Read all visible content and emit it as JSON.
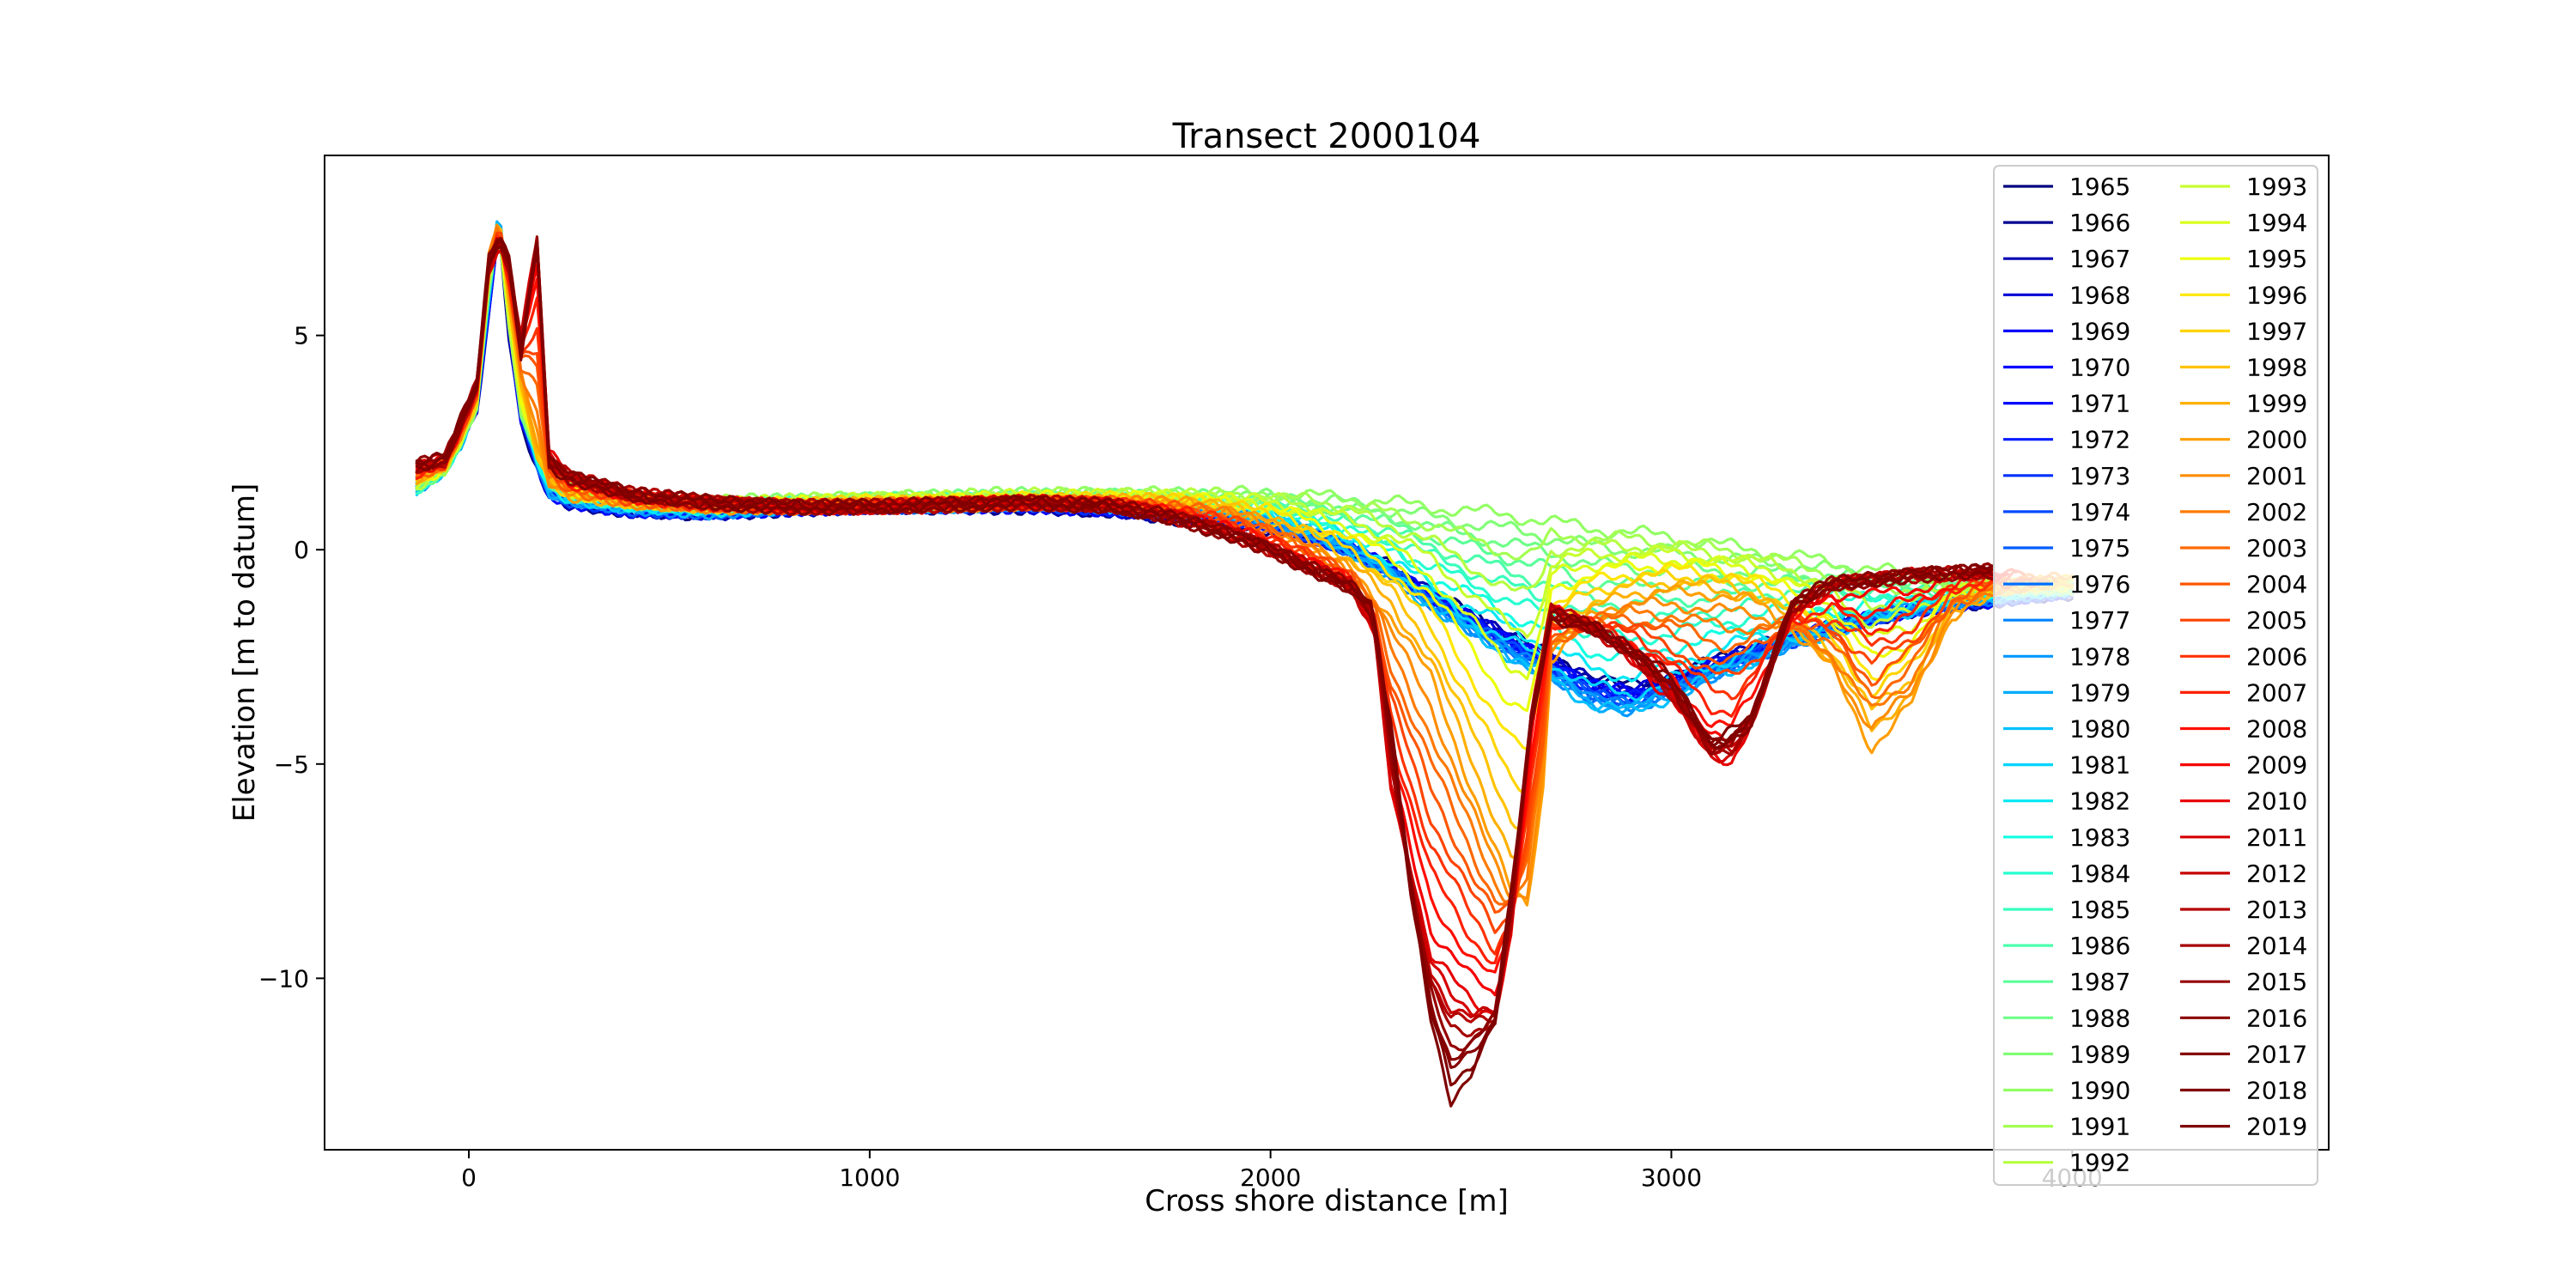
{
  "chart_data": {
    "type": "line",
    "title": "Transect 2000104",
    "xlabel": "Cross shore distance [m]",
    "ylabel": "Elevation [m to datum]",
    "xlim": [
      -360,
      4640
    ],
    "ylim": [
      -14,
      9.2
    ],
    "x_ticks": [
      0,
      1000,
      2000,
      3000,
      4000
    ],
    "x_tick_labels": [
      "0",
      "1000",
      "2000",
      "3000",
      "4000"
    ],
    "y_ticks": [
      -10,
      -5,
      0,
      5
    ],
    "y_tick_labels": [
      "−10",
      "−5",
      "0",
      "5"
    ],
    "grid": false,
    "legend_position": "right",
    "legend_columns": 2,
    "colormap": "jet",
    "series_names": [
      "1965",
      "1966",
      "1967",
      "1968",
      "1969",
      "1970",
      "1971",
      "1972",
      "1973",
      "1974",
      "1975",
      "1976",
      "1977",
      "1978",
      "1979",
      "1980",
      "1981",
      "1982",
      "1983",
      "1984",
      "1985",
      "1986",
      "1987",
      "1988",
      "1989",
      "1990",
      "1991",
      "1992",
      "1993",
      "1994",
      "1995",
      "1996",
      "1997",
      "1998",
      "1999",
      "2000",
      "2001",
      "2002",
      "2003",
      "2004",
      "2005",
      "2006",
      "2007",
      "2008",
      "2009",
      "2010",
      "2011",
      "2012",
      "2013",
      "2014",
      "2015",
      "2016",
      "2017",
      "2018",
      "2019"
    ],
    "series_colors": [
      "#00007f",
      "#00008f",
      "#0000b2",
      "#0000d6",
      "#0000fa",
      "#0000ff",
      "#0008ff",
      "#001cff",
      "#0030ff",
      "#0048ff",
      "#005cff",
      "#0070ff",
      "#0084ff",
      "#0098ff",
      "#00acff",
      "#00c0ff",
      "#00d4ff",
      "#02e8f4",
      "#14ffe2",
      "#26ffd0",
      "#38ffbe",
      "#4affac",
      "#5cff9a",
      "#6eff88",
      "#80ff76",
      "#92ff64",
      "#a4ff52",
      "#b6ff40",
      "#c8ff2e",
      "#daff1c",
      "#ecff0a",
      "#ffe600",
      "#ffd400",
      "#ffc200",
      "#ffb000",
      "#ff9e00",
      "#ff8c00",
      "#ff7a00",
      "#ff6800",
      "#ff5600",
      "#ff4400",
      "#ff3200",
      "#ff2000",
      "#ff0e00",
      "#f60000",
      "#e60000",
      "#d60000",
      "#c60000",
      "#b60000",
      "#a60000",
      "#960000",
      "#8b0000",
      "#860000",
      "#800000",
      "#7f0000"
    ],
    "representative_series": [
      {
        "name": "1965",
        "x": [
          -130,
          -60,
          -20,
          20,
          50,
          75,
          100,
          130,
          170,
          200,
          250,
          400,
          600,
          800,
          1000,
          1200,
          1400,
          1600,
          1700,
          1800,
          1900,
          2000,
          2100,
          2200,
          2300,
          2400,
          2500,
          2600,
          2700,
          2800,
          2900,
          3000,
          3100,
          3200,
          3300,
          3400,
          3500,
          3600,
          3700,
          3800,
          3900,
          4000
        ],
        "y": [
          1.6,
          2.0,
          2.6,
          3.3,
          5.5,
          7.6,
          5.0,
          3.0,
          2.0,
          1.3,
          1.1,
          0.9,
          0.85,
          0.95,
          1.0,
          1.0,
          1.0,
          0.9,
          0.8,
          0.7,
          0.6,
          0.5,
          0.3,
          0.0,
          -0.4,
          -1.0,
          -1.5,
          -2.0,
          -2.5,
          -3.0,
          -3.2,
          -3.0,
          -2.6,
          -2.3,
          -2.0,
          -1.8,
          -1.6,
          -1.4,
          -1.3,
          -1.2,
          -1.1,
          -1.0
        ]
      },
      {
        "name": "1980",
        "x": [
          -130,
          -60,
          -20,
          20,
          50,
          75,
          100,
          130,
          170,
          200,
          250,
          400,
          600,
          800,
          1000,
          1200,
          1400,
          1600,
          1700,
          1800,
          1900,
          2000,
          2100,
          2200,
          2300,
          2400,
          2500,
          2600,
          2700,
          2800,
          2900,
          3000,
          3100,
          3200,
          3300,
          3400,
          3500,
          3600,
          3700,
          3800,
          3900,
          4000
        ],
        "y": [
          1.4,
          1.9,
          2.5,
          3.5,
          6.0,
          7.9,
          5.6,
          3.4,
          2.1,
          1.4,
          1.2,
          1.0,
          0.9,
          1.0,
          1.05,
          1.05,
          1.1,
          1.05,
          1.0,
          0.95,
          0.85,
          0.7,
          0.4,
          0.0,
          -0.6,
          -1.3,
          -1.9,
          -2.5,
          -3.0,
          -3.6,
          -3.8,
          -3.4,
          -3.0,
          -2.6,
          -2.2,
          -1.9,
          -1.6,
          -1.4,
          -1.2,
          -1.1,
          -1.0,
          -0.9
        ]
      },
      {
        "name": "1990",
        "x": [
          -130,
          -60,
          -20,
          20,
          50,
          75,
          100,
          130,
          170,
          200,
          250,
          400,
          600,
          800,
          1000,
          1200,
          1400,
          1600,
          1800,
          2000,
          2200,
          2400,
          2600,
          2800,
          3000,
          3200,
          3400,
          3600,
          3800,
          4000
        ],
        "y": [
          1.5,
          1.9,
          2.6,
          3.4,
          6.2,
          7.5,
          5.2,
          3.2,
          2.4,
          1.8,
          1.4,
          1.2,
          1.1,
          1.15,
          1.2,
          1.25,
          1.3,
          1.3,
          1.3,
          1.3,
          1.2,
          1.0,
          0.8,
          0.5,
          0.3,
          0.0,
          -0.3,
          -0.6,
          -0.8,
          -0.9
        ]
      },
      {
        "name": "2000",
        "x": [
          -130,
          -60,
          -20,
          20,
          50,
          75,
          100,
          130,
          170,
          200,
          250,
          400,
          600,
          800,
          1000,
          1200,
          1400,
          1600,
          1700,
          1800,
          1900,
          2000,
          2100,
          2200,
          2300,
          2400,
          2500,
          2600,
          2640,
          2680,
          2700,
          2800,
          2900,
          3000,
          3100,
          3200,
          3300,
          3400,
          3500,
          3600,
          3700,
          3800,
          3900,
          4000
        ],
        "y": [
          1.7,
          2.0,
          2.7,
          3.6,
          6.8,
          7.7,
          6.0,
          4.0,
          2.3,
          1.6,
          1.3,
          1.1,
          1.0,
          1.0,
          1.05,
          1.05,
          1.1,
          1.1,
          1.1,
          1.05,
          0.9,
          0.6,
          0.1,
          -0.5,
          -1.5,
          -3.0,
          -5.5,
          -8.0,
          -8.3,
          -5.5,
          -2.5,
          -1.6,
          -1.2,
          -1.0,
          -1.0,
          -1.2,
          -1.8,
          -2.8,
          -4.6,
          -3.6,
          -1.5,
          -1.0,
          -0.8,
          -0.7
        ]
      },
      {
        "name": "2010",
        "x": [
          -130,
          -60,
          -20,
          20,
          50,
          75,
          100,
          130,
          170,
          200,
          250,
          400,
          600,
          800,
          1000,
          1200,
          1400,
          1600,
          1700,
          1800,
          1900,
          2000,
          2100,
          2200,
          2260,
          2300,
          2400,
          2500,
          2560,
          2600,
          2650,
          2700,
          2800,
          2900,
          3000,
          3100,
          3150,
          3200,
          3300,
          3400,
          3500,
          3600,
          3700,
          3800
        ],
        "y": [
          1.9,
          2.1,
          2.9,
          3.8,
          6.5,
          7.2,
          6.5,
          5.0,
          7.2,
          2.2,
          1.7,
          1.3,
          1.1,
          1.0,
          1.0,
          1.05,
          1.1,
          1.05,
          0.9,
          0.7,
          0.4,
          0.0,
          -0.4,
          -0.8,
          -2.0,
          -5.5,
          -9.5,
          -10.5,
          -10.8,
          -9.0,
          -4.0,
          -1.3,
          -1.8,
          -2.5,
          -3.5,
          -4.8,
          -4.9,
          -4.0,
          -1.5,
          -0.8,
          -0.7,
          -0.6,
          -0.6,
          -0.5
        ]
      },
      {
        "name": "2019",
        "x": [
          -130,
          -60,
          -20,
          20,
          50,
          75,
          100,
          130,
          170,
          200,
          250,
          400,
          600,
          800,
          1000,
          1200,
          1400,
          1600,
          1700,
          1800,
          1900,
          2000,
          2100,
          2200,
          2250,
          2300,
          2350,
          2400,
          2450,
          2500,
          2560,
          2600,
          2650,
          2700,
          2800,
          2900,
          3000,
          3100,
          3200,
          3300,
          3400,
          3500,
          3600,
          3700,
          3800
        ],
        "y": [
          2.0,
          2.1,
          3.0,
          3.9,
          6.8,
          7.3,
          6.8,
          4.5,
          7.1,
          2.0,
          1.7,
          1.3,
          1.1,
          1.0,
          1.0,
          1.05,
          1.1,
          1.0,
          0.85,
          0.6,
          0.35,
          0.0,
          -0.45,
          -0.9,
          -1.2,
          -4.0,
          -8.0,
          -11.0,
          -12.8,
          -12.2,
          -11.0,
          -8.0,
          -4.0,
          -1.6,
          -1.8,
          -2.3,
          -3.0,
          -4.5,
          -4.0,
          -1.2,
          -0.8,
          -0.7,
          -0.6,
          -0.5,
          -0.5
        ]
      }
    ]
  }
}
